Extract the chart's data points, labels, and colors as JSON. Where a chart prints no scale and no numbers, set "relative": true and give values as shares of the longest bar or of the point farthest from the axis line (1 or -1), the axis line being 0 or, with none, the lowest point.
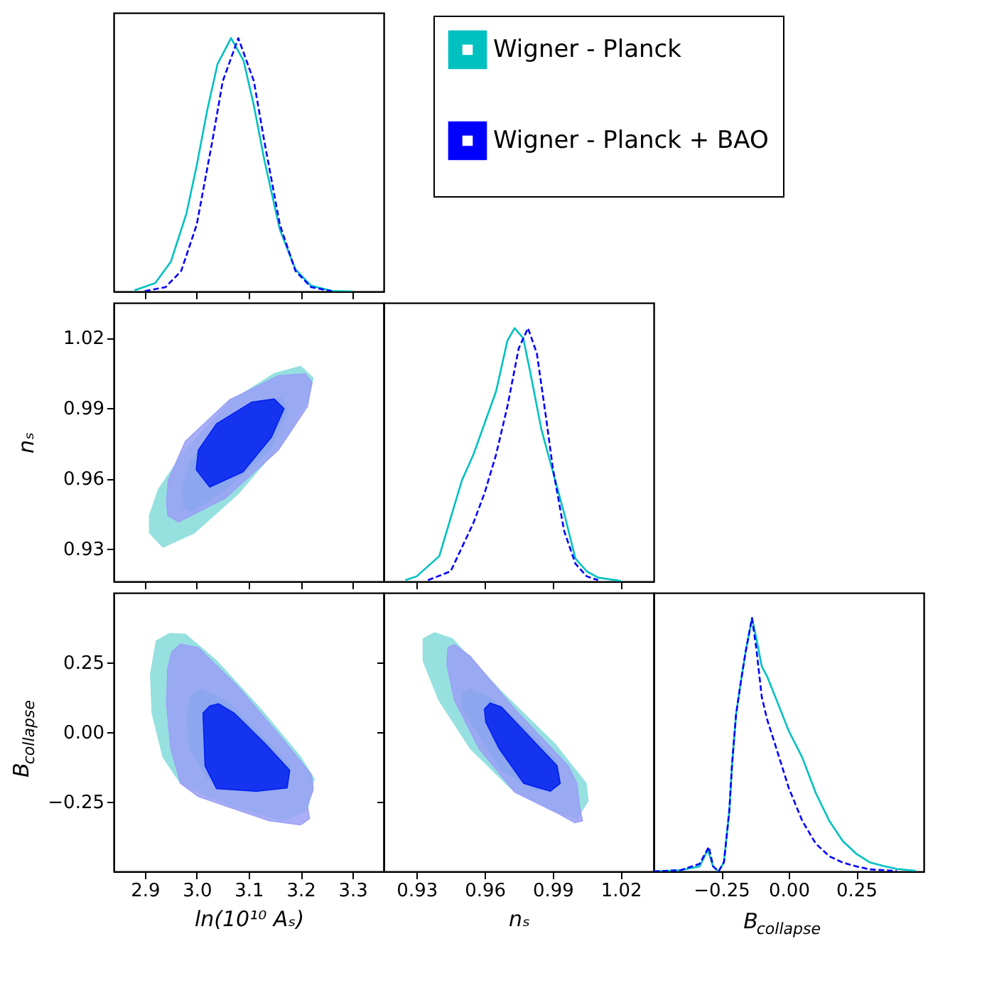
{
  "chart_data": [
    {
      "type": "line",
      "relative": true,
      "legend": "top right",
      "tick_labels": false,
      "grid": false,
      "line_style": "solid",
      "xlim": [
        2.84,
        3.36
      ],
      "xticks": [
        2.9,
        3.0,
        3.1,
        3.2,
        3.3
      ],
      "series": [
        {
          "name": "Wigner - Planck",
          "color": "#00c0c0",
          "x": [
            2.88,
            2.92,
            2.95,
            2.98,
            3.0,
            3.02,
            3.04,
            3.066,
            3.09,
            3.11,
            3.13,
            3.16,
            3.19,
            3.22,
            3.26,
            3.3
          ],
          "values": [
            0.004,
            0.033,
            0.117,
            0.307,
            0.498,
            0.714,
            0.898,
            1,
            0.912,
            0.733,
            0.52,
            0.244,
            0.087,
            0.023,
            0.002,
            0
          ]
        },
        {
          "name": "Wigner - Planck + BAO",
          "color": "#0000ff",
          "line_style": "dashed",
          "x": [
            2.9,
            2.94,
            2.97,
            3.0,
            3.03,
            3.05,
            3.08,
            3.11,
            3.13,
            3.16,
            3.19,
            3.22,
            3.26
          ],
          "values": [
            0.001,
            0.017,
            0.081,
            0.264,
            0.594,
            0.83,
            1,
            0.83,
            0.594,
            0.264,
            0.081,
            0.017,
            0.001
          ]
        }
      ]
    },
    {
      "type": "area",
      "tick_labels": "y",
      "grid": false,
      "ylabel": "nₛ",
      "xlim": [
        2.84,
        3.36
      ],
      "xticks": [
        2.9,
        3.0,
        3.1,
        3.2,
        3.3
      ],
      "ylim": [
        0.916,
        1.035
      ],
      "yticks": [
        0.93,
        0.96,
        0.99,
        1.02
      ],
      "series": [
        {
          "color": "#96e0e0",
          "x": [
            2.909,
            2.935,
            2.995,
            3.08,
            3.166,
            3.213,
            3.224,
            3.2,
            3.149,
            3.063,
            2.978,
            2.926,
            2.909
          ],
          "values": [
            0.9367,
            0.9306,
            0.9367,
            0.9535,
            0.9758,
            0.9926,
            1.0029,
            1.0079,
            1.0047,
            0.9926,
            0.9721,
            0.9553,
            0.9442
          ]
        },
        {
          "color": "#40c8d0",
          "x": [
            2.974,
            2.991,
            3.055,
            3.14,
            3.174,
            3.164,
            3.123,
            3.038,
            2.986,
            2.972
          ],
          "values": [
            0.9479,
            0.946,
            0.9553,
            0.9721,
            0.9885,
            0.9941,
            0.9935,
            0.9814,
            0.9665,
            0.9553
          ]
        },
        {
          "color": "#9aa0f5",
          "x": [
            2.944,
            2.965,
            3.055,
            3.157,
            3.213,
            3.222,
            3.209,
            3.157,
            3.063,
            2.978,
            2.945,
            2.942
          ],
          "values": [
            0.9442,
            0.9414,
            0.9516,
            0.9721,
            0.9907,
            1.001,
            1.0047,
            1.0038,
            0.9935,
            0.9758,
            0.9591,
            0.9498
          ]
        },
        {
          "color": "#0020f0",
          "x": [
            2.999,
            3.025,
            3.089,
            3.144,
            3.168,
            3.149,
            3.106,
            3.038,
            3.003
          ],
          "values": [
            0.9637,
            0.9563,
            0.9628,
            0.9777,
            0.9898,
            0.9939,
            0.9926,
            0.9833,
            0.9721
          ]
        }
      ]
    },
    {
      "type": "line",
      "relative": true,
      "tick_labels": false,
      "grid": false,
      "line_style": "solid",
      "xlim": [
        0.9155,
        1.0345
      ],
      "xticks": [
        0.93,
        0.96,
        0.99,
        1.02
      ],
      "series": [
        {
          "color": "#00c0c0",
          "x": [
            0.925,
            0.93,
            0.94,
            0.95,
            0.955,
            0.96,
            0.965,
            0.97,
            0.9732,
            0.977,
            0.98,
            0.985,
            0.99,
            0.995,
            1.0,
            1.005,
            1.01,
            1.02
          ],
          "values": [
            0.005,
            0.02,
            0.1,
            0.4,
            0.5,
            0.625,
            0.75,
            0.95,
            1,
            0.96,
            0.83,
            0.6,
            0.435,
            0.27,
            0.09,
            0.04,
            0.015,
            0.002
          ]
        },
        {
          "color": "#0000ff",
          "line_style": "dashed",
          "x": [
            0.935,
            0.945,
            0.955,
            0.96,
            0.965,
            0.97,
            0.975,
            0.9791,
            0.983,
            0.987,
            0.99,
            0.995,
            1.0,
            1.005,
            1.01
          ],
          "values": [
            0.005,
            0.04,
            0.23,
            0.35,
            0.5,
            0.69,
            0.92,
            1,
            0.9,
            0.65,
            0.45,
            0.2,
            0.07,
            0.02,
            0.005
          ]
        }
      ]
    },
    {
      "type": "area",
      "grid": false,
      "xlabel": "ln(10¹⁰ Aₛ)",
      "ylabel": "B$_{collapse}$",
      "xlim": [
        2.84,
        3.36
      ],
      "xticks": [
        {
          "value": 2.9,
          "label": "2.9"
        },
        {
          "value": 3.0,
          "label": "3.0"
        },
        3.1,
        3.2,
        3.3
      ],
      "ylim": [
        -0.5,
        0.5
      ],
      "yticks": [
        {
          "value": -0.25,
          "label": "−0.25"
        },
        {
          "value": 0,
          "label": "0.00"
        },
        0.25
      ],
      "series": [
        {
          "color": "#96e0e0",
          "x": [
            2.911,
            2.922,
            2.948,
            2.978,
            3.038,
            3.123,
            3.2,
            3.226,
            3.213,
            3.166,
            3.089,
            3.021,
            2.969,
            2.935,
            2.914
          ],
          "values": [
            0.209,
            0.327,
            0.354,
            0.351,
            0.256,
            0.083,
            -0.09,
            -0.168,
            -0.278,
            -0.318,
            -0.278,
            -0.231,
            -0.184,
            -0.09,
            0.068
          ]
        },
        {
          "color": "#40c8d0",
          "x": [
            2.982,
            2.988,
            3.008,
            3.055,
            3.123,
            3.179,
            3.174,
            3.106,
            3.021,
            2.986
          ],
          "values": [
            0.068,
            0.127,
            0.154,
            0.115,
            -0.011,
            -0.121,
            -0.2,
            -0.215,
            -0.168,
            -0.058
          ]
        },
        {
          "color": "#9aa0f5",
          "x": [
            2.944,
            2.952,
            2.969,
            3.003,
            3.08,
            3.166,
            3.221,
            3.224,
            3.213,
            3.217,
            3.2,
            3.14,
            3.063,
            3.003,
            2.969,
            2.95,
            2.942
          ],
          "values": [
            0.225,
            0.288,
            0.316,
            0.303,
            0.162,
            -0.027,
            -0.153,
            -0.208,
            -0.263,
            -0.31,
            -0.333,
            -0.318,
            -0.27,
            -0.231,
            -0.184,
            -0.058,
            0.099
          ]
        },
        {
          "color": "#0020f0",
          "x": [
            3.012,
            3.025,
            3.042,
            3.072,
            3.132,
            3.179,
            3.174,
            3.115,
            3.038,
            3.016
          ],
          "values": [
            0.068,
            0.094,
            0.102,
            0.068,
            -0.042,
            -0.137,
            -0.2,
            -0.212,
            -0.203,
            -0.121
          ]
        }
      ]
    },
    {
      "type": "area",
      "tick_labels": "x",
      "grid": false,
      "xlabel": "nₛ",
      "xlim": [
        0.9155,
        1.0345
      ],
      "xticks": [
        0.93,
        0.96,
        0.99,
        1.02
      ],
      "ylim": [
        -0.5,
        0.5
      ],
      "yticks": [
        -0.25,
        0,
        0.25
      ],
      "series": [
        {
          "color": "#96e0e0",
          "x": [
            0.9329,
            0.9379,
            0.9457,
            0.9673,
            0.9909,
            1.0047,
            1.0056,
            1.0007,
            0.9889,
            0.9713,
            0.9536,
            0.9398,
            0.9329
          ],
          "values": [
            0.335,
            0.357,
            0.335,
            0.146,
            -0.042,
            -0.184,
            -0.247,
            -0.31,
            -0.278,
            -0.2,
            -0.058,
            0.115,
            0.256
          ]
        },
        {
          "color": "#40c8d0",
          "x": [
            0.9502,
            0.9536,
            0.9614,
            0.9791,
            0.9919,
            0.9919,
            0.983,
            0.9673,
            0.9565,
            0.9502
          ],
          "values": [
            0.138,
            0.154,
            0.127,
            0.005,
            -0.105,
            -0.184,
            -0.208,
            -0.137,
            0.005,
            0.083
          ]
        },
        {
          "color": "#9aa0f5",
          "x": [
            0.9438,
            0.9467,
            0.9536,
            0.9732,
            0.9968,
            1.0007,
            1.0017,
            1.0031,
            0.9997,
            0.9929,
            0.9732,
            0.9575,
            0.9467,
            0.9434
          ],
          "values": [
            0.303,
            0.314,
            0.272,
            0.083,
            -0.121,
            -0.184,
            -0.263,
            -0.318,
            -0.325,
            -0.294,
            -0.215,
            -0.058,
            0.115,
            0.241
          ]
        },
        {
          "color": "#0020f0",
          "x": [
            0.9599,
            0.9624,
            0.9673,
            0.9791,
            0.9919,
            0.9933,
            0.9889,
            0.9772,
            0.9663,
            0.9605
          ],
          "values": [
            0.083,
            0.104,
            0.091,
            -0.011,
            -0.121,
            -0.184,
            -0.212,
            -0.184,
            -0.058,
            0.036
          ]
        }
      ]
    },
    {
      "type": "line",
      "relative": true,
      "tick_labels": "x",
      "grid": false,
      "line_style": "solid",
      "xlabel": "B$_{collapse}$",
      "xlim": [
        -0.5,
        0.5
      ],
      "xticks": [
        {
          "value": -0.25,
          "label": "−0.25"
        },
        {
          "value": 0,
          "label": "0.00"
        },
        0.25
      ],
      "series": [
        {
          "color": "#00c0c0",
          "x": [
            -0.5,
            -0.4,
            -0.33,
            -0.3,
            -0.28,
            -0.26,
            -0.24,
            -0.22,
            -0.21,
            -0.195,
            -0.18,
            -0.16,
            -0.136,
            -0.12,
            -0.1,
            -0.08,
            -0.05,
            0.0,
            0.05,
            0.1,
            0.15,
            0.2,
            0.25,
            0.3,
            0.35,
            0.4,
            0.47
          ],
          "values": [
            0,
            0.005,
            0.02,
            0.085,
            0.02,
            0,
            0.036,
            0.24,
            0.42,
            0.62,
            0.73,
            0.865,
            1,
            0.92,
            0.81,
            0.77,
            0.69,
            0.555,
            0.45,
            0.31,
            0.2,
            0.12,
            0.07,
            0.036,
            0.022,
            0.01,
            0.003
          ]
        },
        {
          "color": "#0000ff",
          "line_style": "dashed",
          "x": [
            -0.5,
            -0.4,
            -0.33,
            -0.296,
            -0.28,
            -0.26,
            -0.24,
            -0.22,
            -0.21,
            -0.195,
            -0.18,
            -0.16,
            -0.136,
            -0.12,
            -0.1,
            -0.08,
            -0.05,
            0.0,
            0.05,
            0.1,
            0.15,
            0.2,
            0.25,
            0.3,
            0.4
          ],
          "values": [
            0,
            0.005,
            0.03,
            0.097,
            0.02,
            0,
            0.036,
            0.24,
            0.42,
            0.62,
            0.73,
            0.865,
            1,
            0.88,
            0.69,
            0.6,
            0.5,
            0.33,
            0.2,
            0.11,
            0.06,
            0.035,
            0.02,
            0.008,
            0.002
          ]
        }
      ]
    }
  ]
}
